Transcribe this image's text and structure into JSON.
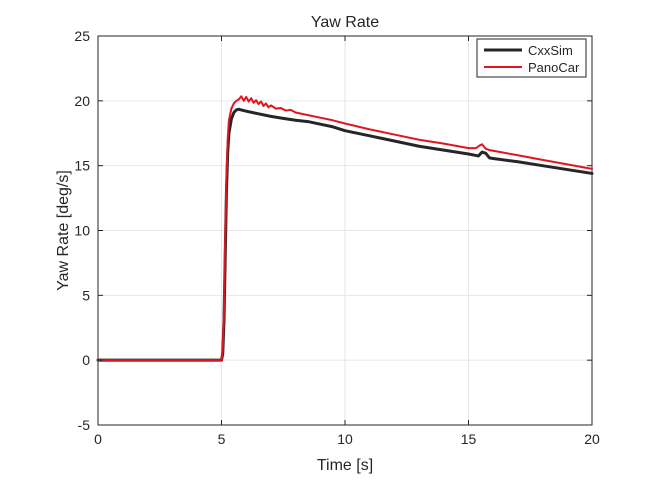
{
  "chart_data": {
    "type": "line",
    "title": "Yaw Rate",
    "xlabel": "Time [s]",
    "ylabel": "Yaw Rate [deg/s]",
    "xlim": [
      0,
      20
    ],
    "ylim": [
      -5,
      25
    ],
    "xticks": [
      0,
      5,
      10,
      15,
      20
    ],
    "yticks": [
      -5,
      0,
      5,
      10,
      15,
      20,
      25
    ],
    "xtick_labels": [
      "0",
      "5",
      "10",
      "15",
      "20"
    ],
    "ytick_labels": [
      "-5",
      "0",
      "5",
      "10",
      "15",
      "20",
      "25"
    ],
    "grid": true,
    "legend_position": "top-right",
    "series": [
      {
        "name": "CxxSim",
        "color": "#262626",
        "x": [
          0,
          5.0,
          5.05,
          5.1,
          5.15,
          5.2,
          5.25,
          5.3,
          5.4,
          5.5,
          5.6,
          5.7,
          5.8,
          6.0,
          6.5,
          7.0,
          7.5,
          8.0,
          8.5,
          9.0,
          9.5,
          10.0,
          11.0,
          12.0,
          13.0,
          14.0,
          15.0,
          15.4,
          15.55,
          15.7,
          15.85,
          16.0,
          17.0,
          18.0,
          19.0,
          20.0
        ],
        "y": [
          0,
          0,
          0.5,
          3.0,
          8.0,
          13.0,
          16.0,
          17.5,
          18.6,
          19.1,
          19.3,
          19.35,
          19.3,
          19.2,
          19.0,
          18.8,
          18.65,
          18.5,
          18.4,
          18.2,
          18.0,
          17.7,
          17.3,
          16.9,
          16.5,
          16.2,
          15.9,
          15.75,
          16.05,
          15.95,
          15.6,
          15.55,
          15.3,
          15.0,
          14.7,
          14.4
        ]
      },
      {
        "name": "PanoCar",
        "color": "#e3151c",
        "x": [
          0,
          5.0,
          5.05,
          5.1,
          5.15,
          5.2,
          5.25,
          5.3,
          5.4,
          5.5,
          5.6,
          5.7,
          5.8,
          5.9,
          6.0,
          6.1,
          6.2,
          6.3,
          6.4,
          6.5,
          6.6,
          6.7,
          6.8,
          6.9,
          7.0,
          7.2,
          7.4,
          7.6,
          7.8,
          8.0,
          8.5,
          9.0,
          9.5,
          10.0,
          11.0,
          12.0,
          13.0,
          14.0,
          15.0,
          15.3,
          15.45,
          15.55,
          15.7,
          15.85,
          16.0,
          17.0,
          18.0,
          19.0,
          20.0
        ],
        "y": [
          0,
          0,
          0.8,
          4.0,
          9.5,
          14.0,
          17.0,
          18.5,
          19.4,
          19.8,
          20.0,
          20.1,
          20.35,
          20.0,
          20.3,
          19.95,
          20.2,
          19.85,
          20.05,
          19.75,
          19.95,
          19.6,
          19.8,
          19.5,
          19.65,
          19.4,
          19.45,
          19.25,
          19.3,
          19.1,
          18.9,
          18.7,
          18.5,
          18.25,
          17.8,
          17.4,
          17.0,
          16.7,
          16.35,
          16.35,
          16.55,
          16.65,
          16.3,
          16.2,
          16.15,
          15.8,
          15.45,
          15.1,
          14.75
        ]
      }
    ]
  }
}
